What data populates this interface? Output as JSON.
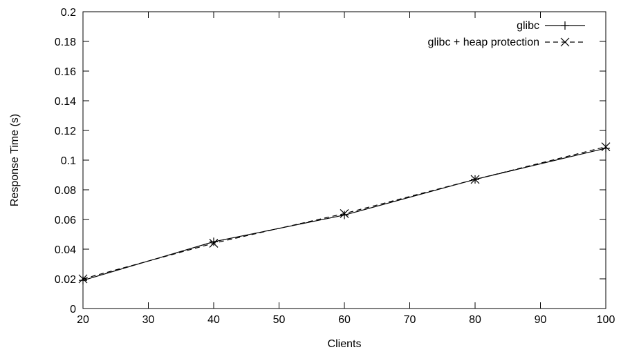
{
  "chart_data": {
    "type": "line",
    "title": "",
    "xlabel": "Clients",
    "ylabel": "Response Time (s)",
    "xlim": [
      20,
      100
    ],
    "ylim": [
      0,
      0.2
    ],
    "x_ticks": [
      20,
      30,
      40,
      50,
      60,
      70,
      80,
      90,
      100
    ],
    "y_ticks": [
      0,
      0.02,
      0.04,
      0.06,
      0.08,
      0.1,
      0.12,
      0.14,
      0.16,
      0.18,
      0.2
    ],
    "x_tick_labels": [
      "20",
      "30",
      "40",
      "50",
      "60",
      "70",
      "80",
      "90",
      "100"
    ],
    "y_tick_labels": [
      "0",
      "0.02",
      "0.04",
      "0.06",
      "0.08",
      "0.1",
      "0.12",
      "0.14",
      "0.16",
      "0.18",
      "0.2"
    ],
    "grid": false,
    "legend_position": "top-right",
    "x": [
      20,
      40,
      60,
      80,
      100
    ],
    "series": [
      {
        "name": "glibc",
        "marker": "plus",
        "line_style": "solid",
        "color": "#000000",
        "values": [
          0.019,
          0.045,
          0.063,
          0.087,
          0.108
        ]
      },
      {
        "name": "glibc + heap protection",
        "marker": "x",
        "line_style": "dashed",
        "color": "#000000",
        "values": [
          0.02,
          0.044,
          0.064,
          0.087,
          0.109
        ]
      }
    ]
  }
}
